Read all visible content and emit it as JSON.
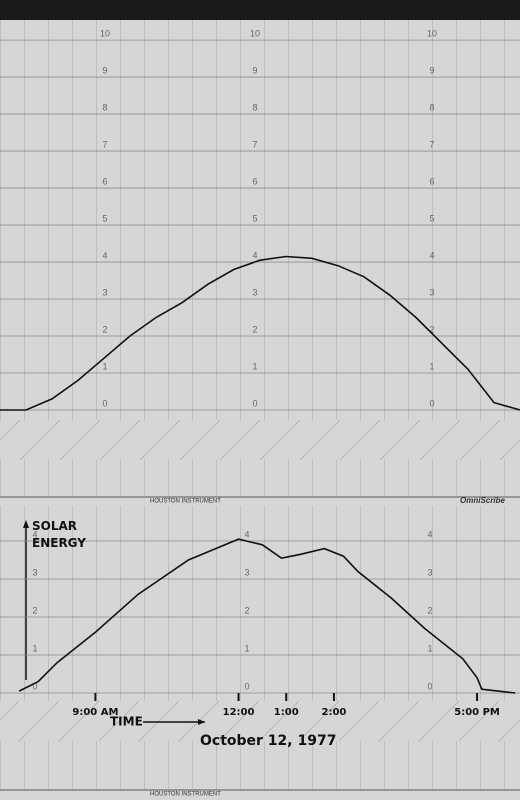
{
  "chart_data": [
    {
      "type": "line",
      "categories": [
        null,
        null,
        null,
        null,
        null,
        null,
        null,
        null,
        null,
        null,
        null,
        null,
        null,
        null,
        null,
        null,
        null,
        null,
        null,
        null,
        null
      ],
      "series": [
        {
          "color": "#111111",
          "values": [
            0,
            0,
            0.3,
            0.8,
            1.4,
            2.0,
            2.5,
            2.9,
            3.4,
            3.8,
            4.05,
            4.15,
            4.1,
            3.9,
            3.6,
            3.1,
            2.5,
            1.8,
            1.1,
            0.2,
            0
          ]
        }
      ],
      "ylim": [
        0,
        10.3
      ],
      "yticks": [
        0,
        1,
        2,
        3,
        4,
        5,
        6,
        7,
        8,
        9,
        10
      ],
      "grid": true,
      "footer_left": "HOUSTON INSTRUMENT",
      "footer_right": "OmniScribe"
    },
    {
      "type": "line",
      "x": [
        7.4,
        7.8,
        8.2,
        9,
        9.9,
        10.95,
        12,
        12.5,
        12.9,
        13.3,
        13.8,
        14.2,
        14.5,
        15.2,
        15.9,
        16.7,
        17,
        17.1,
        17.8
      ],
      "series": [
        {
          "color": "#111111",
          "values": [
            0.05,
            0.3,
            0.8,
            1.6,
            2.6,
            3.5,
            4.05,
            3.9,
            3.55,
            3.65,
            3.8,
            3.6,
            3.2,
            2.5,
            1.7,
            0.9,
            0.4,
            0.1,
            0
          ]
        }
      ],
      "xlim": [
        7,
        17.9
      ],
      "xticks": [
        {
          "value": 9,
          "label": "9:00 AM"
        },
        {
          "value": 12,
          "label": "12:00"
        },
        {
          "value": 13,
          "label": "1:00"
        },
        {
          "value": 14,
          "label": "2:00"
        },
        {
          "value": 17,
          "label": "5:00 PM"
        }
      ],
      "ylim": [
        0,
        4.8
      ],
      "yticks": [
        0,
        1,
        2,
        3,
        4
      ],
      "grid": true,
      "y_label": "SOLAR ENERGY",
      "x_label": "TIME",
      "annotation": "October 12, 1977",
      "footer_left": "HOUSTON INSTRUMENT"
    }
  ]
}
